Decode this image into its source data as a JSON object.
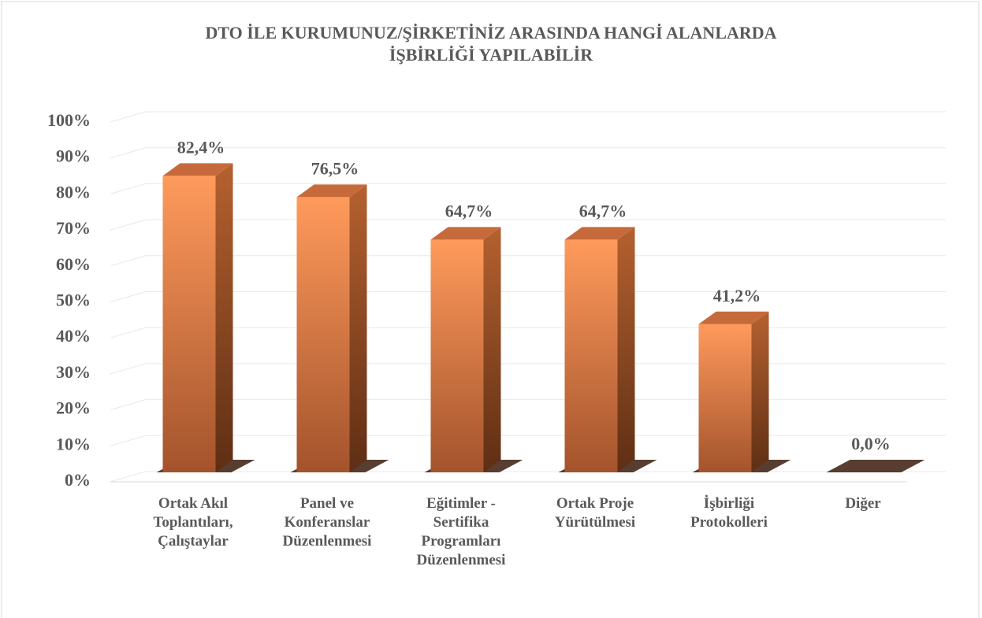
{
  "chart_data": {
    "type": "bar3d",
    "title": [
      "DTO İLE KURUMUNUZ/ŞİRKETİNİZ ARASINDA HANGİ ALANLARDA",
      "İŞBİRLİĞİ YAPILABİLİR"
    ],
    "categories": [
      "Ortak Akıl Toplantıları, Çalıştaylar",
      "Panel ve Konferanslar Düzenlenmesi",
      "Eğitimler - Sertifika Programları Düzenlenmesi",
      "Ortak Proje Yürütülmesi",
      "İşbirliği Protokolleri",
      "Diğer"
    ],
    "values": [
      82.4,
      76.5,
      64.7,
      64.7,
      41.2,
      0
    ],
    "value_labels": [
      "82,4%",
      "76,5%",
      "64,7%",
      "64,7%",
      "41,2%",
      "0,0%"
    ],
    "color": "#f4894f",
    "ylim": [
      0,
      100
    ],
    "yticks": [
      {
        "value": 0,
        "label": "0%"
      },
      {
        "value": 10,
        "label": "10%"
      },
      {
        "value": 20,
        "label": "20%"
      },
      {
        "value": 30,
        "label": "30%"
      },
      {
        "value": 40,
        "label": "40%"
      },
      {
        "value": 50,
        "label": "50%"
      },
      {
        "value": 60,
        "label": "60%"
      },
      {
        "value": 70,
        "label": "70%"
      },
      {
        "value": 80,
        "label": "80%"
      },
      {
        "value": 90,
        "label": "90%"
      },
      {
        "value": 100,
        "label": "100%"
      }
    ],
    "grid": true
  }
}
